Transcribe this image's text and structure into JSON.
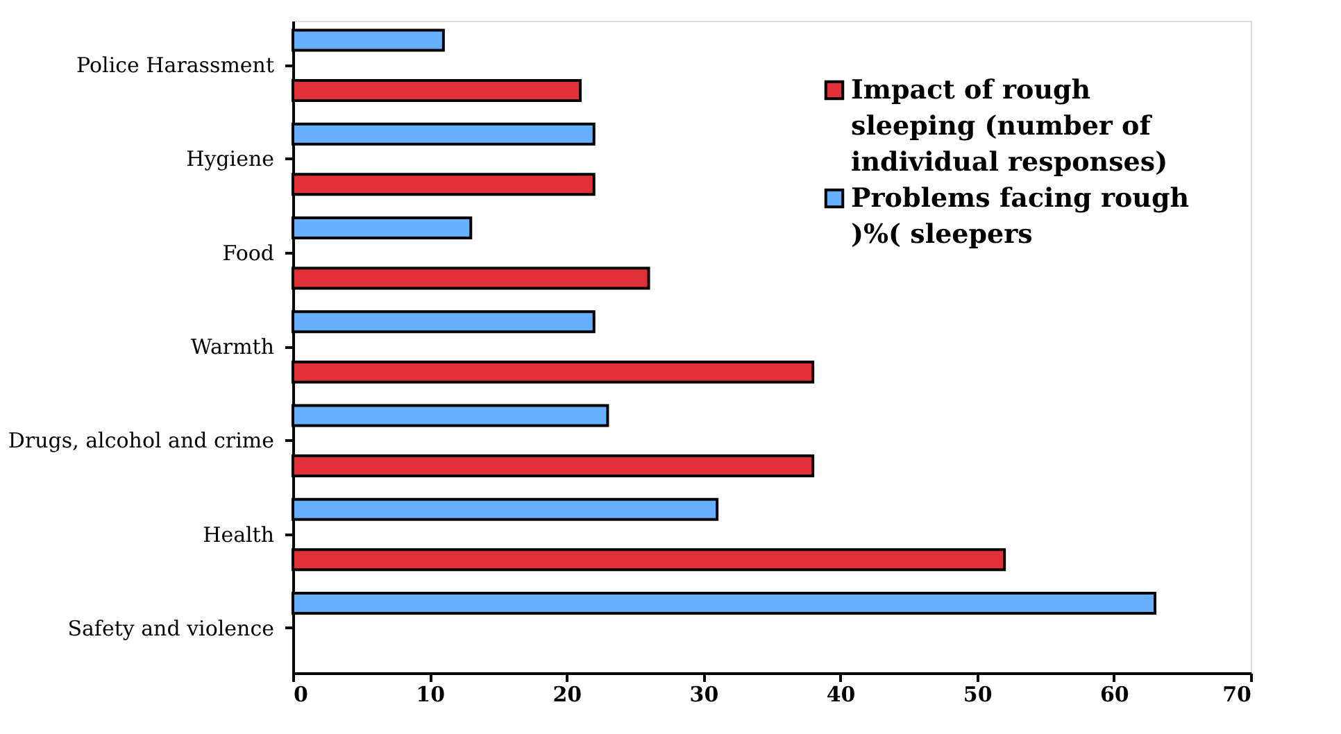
{
  "chart_data": {
    "type": "bar",
    "orientation": "horizontal",
    "categories": [
      "Police Harassment",
      "Hygiene",
      "Food",
      "Warmth",
      "Drugs, alcohol and crime",
      "Health",
      "Safety and violence"
    ],
    "series": [
      {
        "name": "Impact of rough sleeping (number of individual responses)",
        "color": "#e03038",
        "values": [
          21,
          22,
          26,
          38,
          38,
          52,
          null
        ]
      },
      {
        "name": "Problems facing rough )%( sleepers",
        "color": "#66b0ff",
        "values": [
          11,
          22,
          13,
          22,
          23,
          31,
          63
        ]
      }
    ],
    "xlim": [
      0,
      70
    ],
    "xticks": [
      0,
      10,
      20,
      30,
      40,
      50,
      60,
      70
    ],
    "grid": false,
    "legend": "top right"
  }
}
